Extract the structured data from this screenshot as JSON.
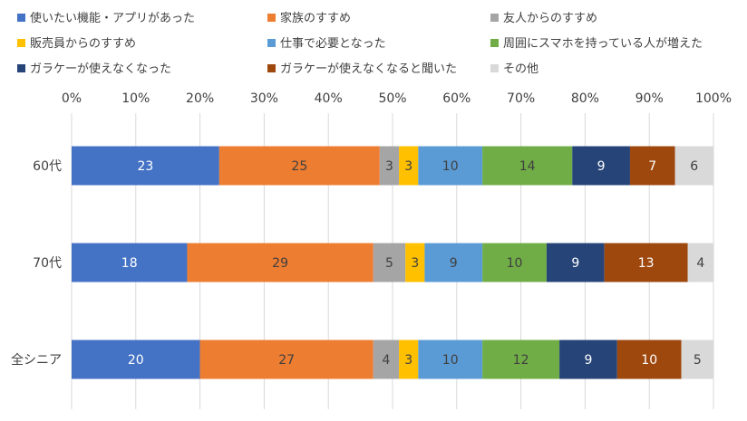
{
  "chart_data": {
    "type": "bar",
    "orientation": "horizontal",
    "stacked": "percent",
    "legend_position": "top",
    "grid": true,
    "xlim": [
      0,
      100
    ],
    "x_ticks": [
      "0%",
      "10%",
      "20%",
      "30%",
      "40%",
      "50%",
      "60%",
      "70%",
      "80%",
      "90%",
      "100%"
    ],
    "categories": [
      "60代",
      "70代",
      "全シニア"
    ],
    "series": [
      {
        "name": "使いたい機能・アプリがあった",
        "color": "#4472C4",
        "label_color": "#ffffff",
        "values": [
          23,
          18,
          20
        ]
      },
      {
        "name": "家族のすすめ",
        "color": "#ED7D31",
        "label_color": "#404040",
        "values": [
          25,
          29,
          27
        ]
      },
      {
        "name": "友人からのすすめ",
        "color": "#A5A5A5",
        "label_color": "#404040",
        "values": [
          3,
          5,
          4
        ]
      },
      {
        "name": "販売員からのすすめ",
        "color": "#FFC000",
        "label_color": "#404040",
        "values": [
          3,
          3,
          3
        ]
      },
      {
        "name": "仕事で必要となった",
        "color": "#5B9BD5",
        "label_color": "#404040",
        "values": [
          10,
          9,
          10
        ]
      },
      {
        "name": "周囲にスマホを持っている人が増えた",
        "color": "#70AD47",
        "label_color": "#404040",
        "values": [
          14,
          10,
          12
        ]
      },
      {
        "name": "ガラケーが使えなくなった",
        "color": "#264478",
        "label_color": "#ffffff",
        "values": [
          9,
          9,
          9
        ]
      },
      {
        "name": "ガラケーが使えなくなると聞いた",
        "color": "#9E480E",
        "label_color": "#ffffff",
        "values": [
          7,
          13,
          10
        ]
      },
      {
        "name": "その他",
        "color": "#D9D9D9",
        "label_color": "#404040",
        "values": [
          6,
          4,
          5
        ]
      }
    ]
  }
}
